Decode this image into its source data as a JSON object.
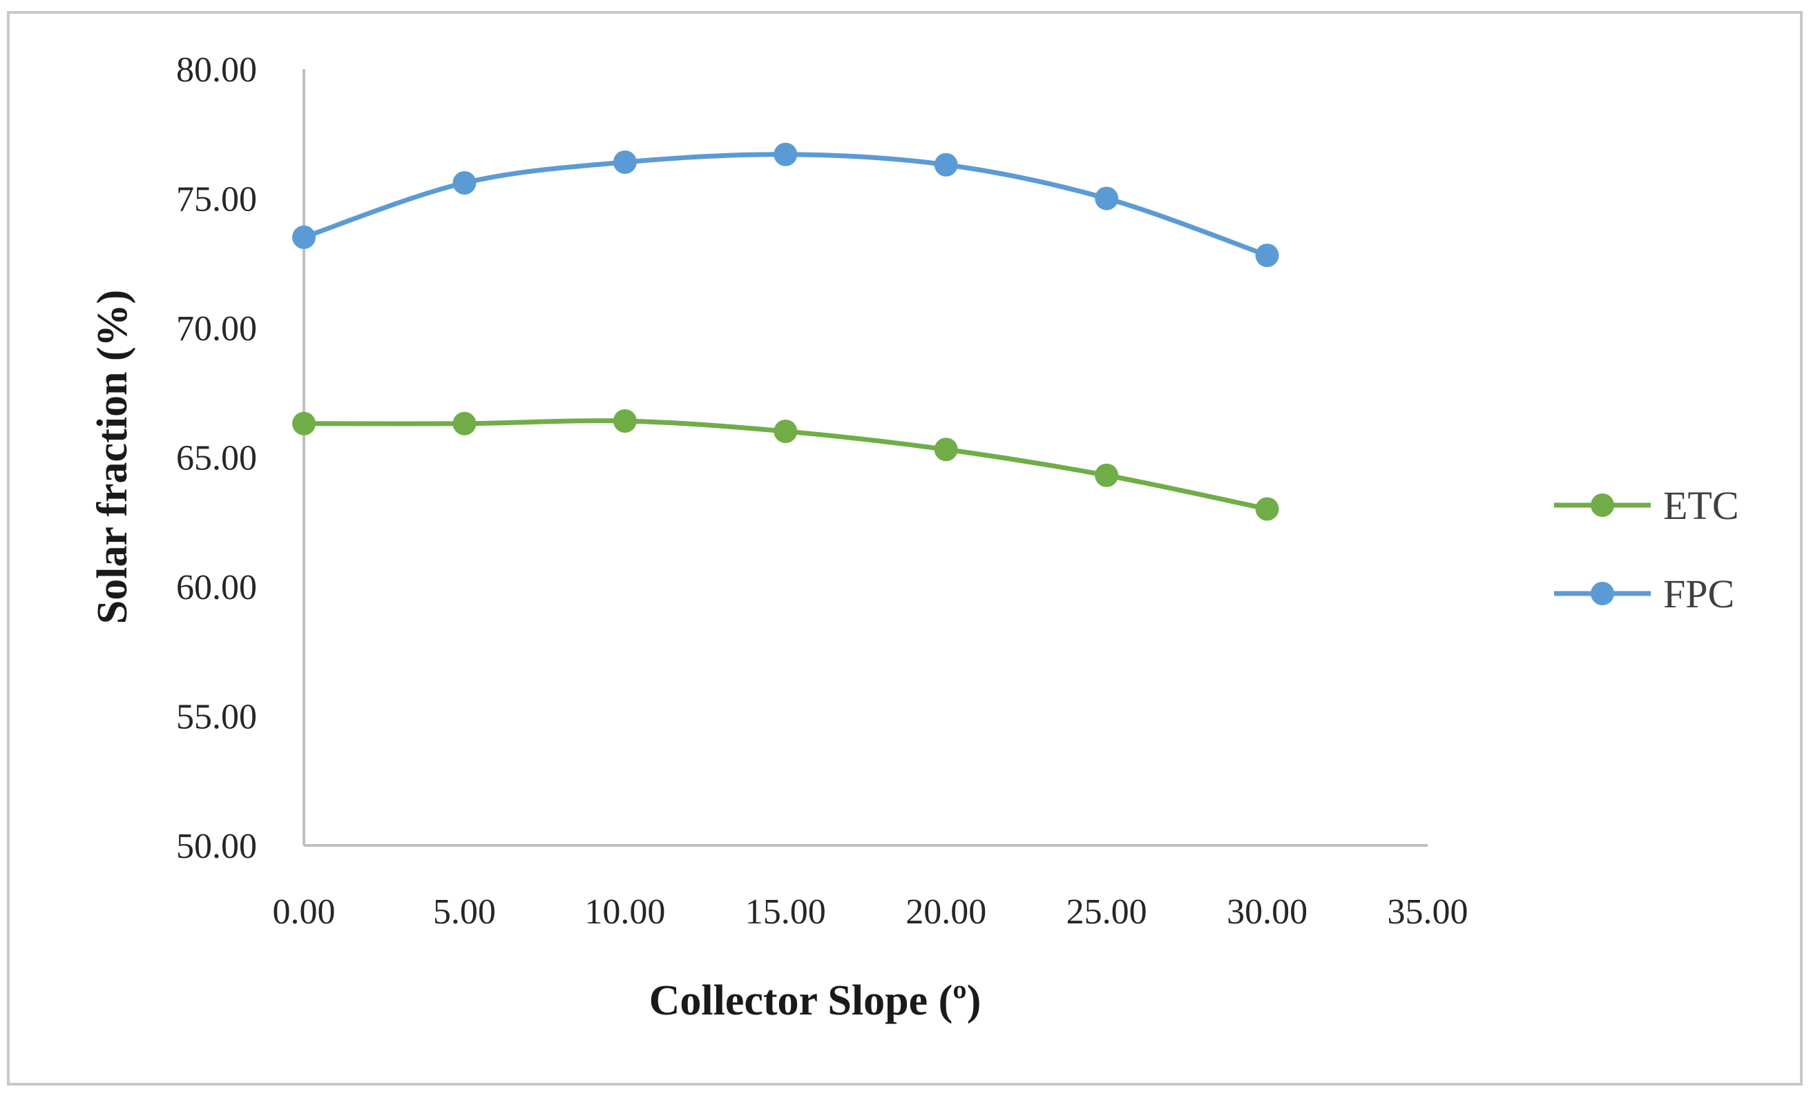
{
  "chart_data": {
    "type": "line",
    "title": "",
    "xlabel": "Collector Slope (º)",
    "ylabel": "Solar fraction (%)",
    "xlim": [
      0,
      35
    ],
    "ylim": [
      50,
      80
    ],
    "x_ticks": [
      "0.00",
      "5.00",
      "10.00",
      "15.00",
      "20.00",
      "25.00",
      "30.00",
      "35.00"
    ],
    "y_ticks": [
      "50.00",
      "55.00",
      "60.00",
      "65.00",
      "70.00",
      "75.00",
      "80.00"
    ],
    "grid": false,
    "smooth": true,
    "legend_position": "right",
    "series": [
      {
        "name": "ETC",
        "color": "#70ad47",
        "x": [
          0,
          5,
          10,
          15,
          20,
          25,
          30
        ],
        "y": [
          66.3,
          66.3,
          66.4,
          66.0,
          65.3,
          64.3,
          63.0
        ]
      },
      {
        "name": "FPC",
        "color": "#5b9bd5",
        "x": [
          0,
          5,
          10,
          15,
          20,
          25,
          30
        ],
        "y": [
          73.5,
          75.6,
          76.4,
          76.7,
          76.3,
          75.0,
          72.8
        ]
      }
    ],
    "axis_color": "#bfbfbf",
    "frame_color": "#c8c8c8"
  }
}
